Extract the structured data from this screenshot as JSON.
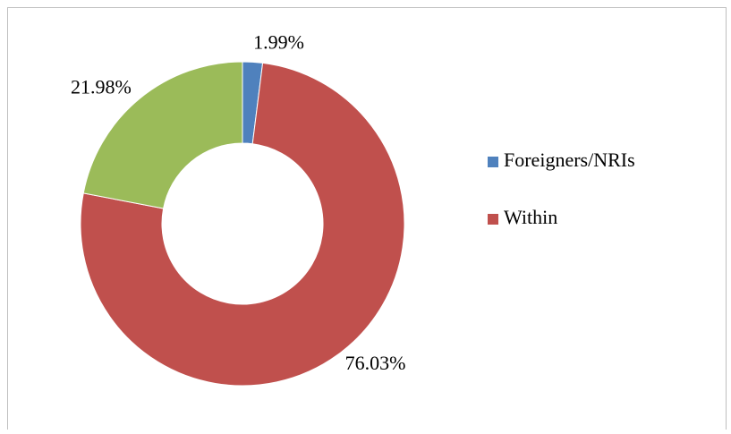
{
  "chart_data": {
    "type": "pie",
    "categories": [
      "Foreigners/NRIs",
      "Within",
      null
    ],
    "values": [
      1.99,
      76.03,
      21.98
    ],
    "value_labels": [
      "1.99%",
      "76.03%",
      "21.98%"
    ],
    "colors": [
      "#4f81bd",
      "#c0504d",
      "#9bbb59"
    ],
    "legend": "right"
  }
}
